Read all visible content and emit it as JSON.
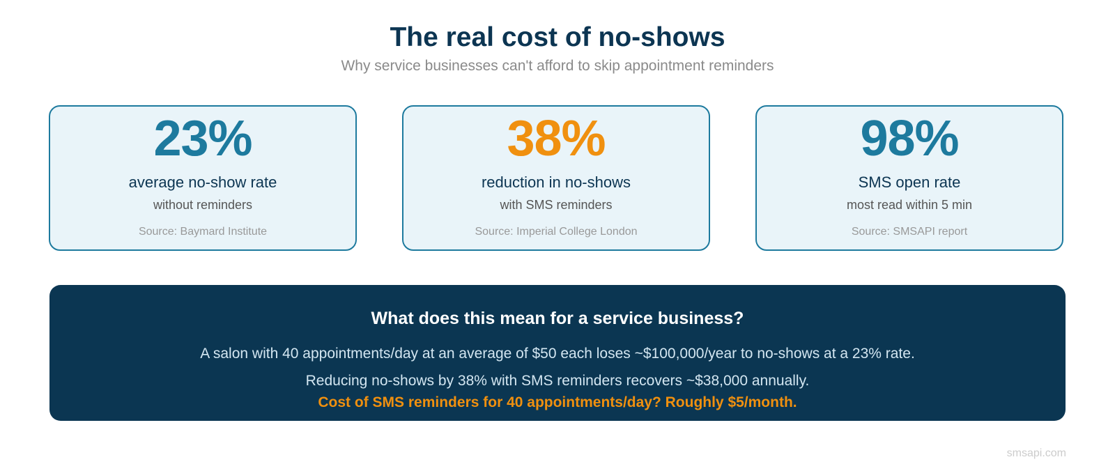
{
  "header": {
    "title": "The real cost of no-shows",
    "subtitle": "Why service businesses can't afford to skip appointment reminders"
  },
  "colors": {
    "accent_blue": "#1d7a9e",
    "accent_orange": "#f0900f",
    "navy": "#0c3552"
  },
  "stats": [
    {
      "value": "23%",
      "label": "average no-show rate",
      "sub": "without reminders",
      "source": "Source: Baymard Institute",
      "color": "#1d7a9e"
    },
    {
      "value": "38%",
      "label": "reduction in no-shows",
      "sub": "with SMS reminders",
      "source": "Source: Imperial College London",
      "color": "#f0900f"
    },
    {
      "value": "98%",
      "label": "SMS open rate",
      "sub": "most read within 5 min",
      "source": "Source: SMSAPI report",
      "color": "#1d7a9e"
    }
  ],
  "summary": {
    "heading": "What does this mean for a service business?",
    "line1": "A salon with 40 appointments/day at an average of $50 each loses ~$100,000/year to no-shows at a 23% rate.",
    "line2": "Reducing no-shows by 38% with SMS reminders recovers ~$38,000 annually.",
    "highlight": "Cost of SMS reminders for 40 appointments/day? Roughly $5/month."
  },
  "footer": {
    "brand": "smsapi.com"
  }
}
